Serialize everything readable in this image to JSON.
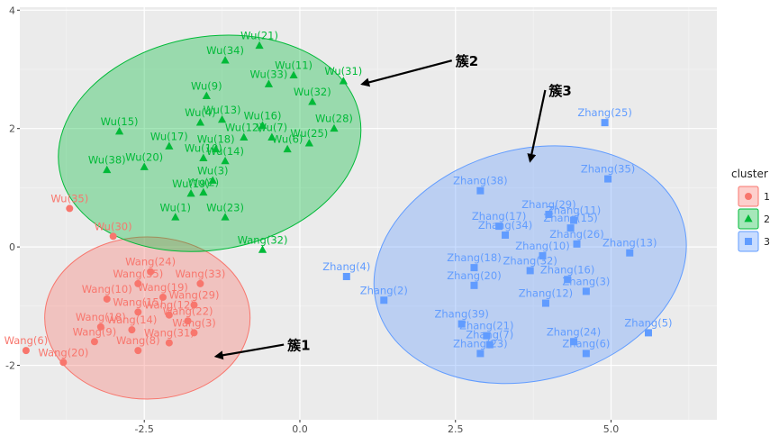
{
  "chart_data": {
    "type": "scatter",
    "title": "",
    "xlabel": "",
    "ylabel": "",
    "xlim": [
      -4.5,
      6.7
    ],
    "ylim": [
      -2.92,
      4.05
    ],
    "x_ticks": [
      -2.5,
      0.0,
      2.5,
      5.0
    ],
    "x_tick_labels": [
      "-2.5",
      "0.0",
      "2.5",
      "5.0"
    ],
    "y_ticks": [
      -2,
      0,
      2,
      4
    ],
    "y_tick_labels": [
      "-2",
      "0",
      "2",
      "4"
    ],
    "grid": true,
    "legend": {
      "title": "cluster",
      "position": "right",
      "entries": [
        {
          "label": "1",
          "color": "#F8766D",
          "shape": "circle"
        },
        {
          "label": "2",
          "color": "#00BA38",
          "shape": "triangle"
        },
        {
          "label": "3",
          "color": "#619CFF",
          "shape": "square"
        }
      ]
    },
    "series": [
      {
        "cluster": "1",
        "color": "#F8766D",
        "shape": "circle",
        "ellipse": {
          "cx": -2.45,
          "cy": -1.2,
          "rx": 1.65,
          "ry": 1.37,
          "angle": 0
        },
        "points": [
          {
            "label": "Wu(35)",
            "x": -3.7,
            "y": 0.65
          },
          {
            "label": "Wu(30)",
            "x": -3.0,
            "y": 0.18
          },
          {
            "label": "Wang(24)",
            "x": -2.4,
            "y": -0.42
          },
          {
            "label": "Wang(35)",
            "x": -2.6,
            "y": -0.62
          },
          {
            "label": "Wang(33)",
            "x": -1.6,
            "y": -0.62
          },
          {
            "label": "Wang(10)",
            "x": -3.1,
            "y": -0.88
          },
          {
            "label": "Wang(19)",
            "x": -2.2,
            "y": -0.85
          },
          {
            "label": "Wang(29)",
            "x": -1.7,
            "y": -0.98
          },
          {
            "label": "Wang(12)",
            "x": -2.1,
            "y": -1.15
          },
          {
            "label": "Wang(15)",
            "x": -2.6,
            "y": -1.1
          },
          {
            "label": "Wang(22)",
            "x": -1.8,
            "y": -1.25
          },
          {
            "label": "Wang(18)",
            "x": -3.2,
            "y": -1.35
          },
          {
            "label": "Wang(14)",
            "x": -2.7,
            "y": -1.4
          },
          {
            "label": "Wang(3)",
            "x": -1.7,
            "y": -1.45
          },
          {
            "label": "Wang(9)",
            "x": -3.3,
            "y": -1.6
          },
          {
            "label": "Wang(31)",
            "x": -2.1,
            "y": -1.62
          },
          {
            "label": "Wang(8)",
            "x": -2.6,
            "y": -1.75
          },
          {
            "label": "Wang(6)",
            "x": -4.4,
            "y": -1.75
          },
          {
            "label": "Wang(20)",
            "x": -3.8,
            "y": -1.95
          }
        ]
      },
      {
        "cluster": "2",
        "color": "#00BA38",
        "shape": "triangle",
        "ellipse": {
          "cx": -1.45,
          "cy": 1.75,
          "rx": 2.45,
          "ry": 1.8,
          "angle": -10
        },
        "points": [
          {
            "label": "Wu(21)",
            "x": -0.65,
            "y": 3.4
          },
          {
            "label": "Wu(34)",
            "x": -1.2,
            "y": 3.15
          },
          {
            "label": "Wu(11)",
            "x": -0.1,
            "y": 2.9
          },
          {
            "label": "Wu(33)",
            "x": -0.5,
            "y": 2.75
          },
          {
            "label": "Wu(31)",
            "x": 0.7,
            "y": 2.8
          },
          {
            "label": "Wu(9)",
            "x": -1.5,
            "y": 2.55
          },
          {
            "label": "Wu(32)",
            "x": 0.2,
            "y": 2.45
          },
          {
            "label": "Wu(13)",
            "x": -1.25,
            "y": 2.15
          },
          {
            "label": "Wu(4)",
            "x": -1.6,
            "y": 2.1
          },
          {
            "label": "Wu(16)",
            "x": -0.6,
            "y": 2.05
          },
          {
            "label": "Wu(15)",
            "x": -2.9,
            "y": 1.95
          },
          {
            "label": "Wu(28)",
            "x": 0.55,
            "y": 2.0
          },
          {
            "label": "Wu(12)",
            "x": -0.9,
            "y": 1.85
          },
          {
            "label": "Wu(7)",
            "x": -0.45,
            "y": 1.85
          },
          {
            "label": "Wu(25)",
            "x": 0.15,
            "y": 1.75
          },
          {
            "label": "Wu(17)",
            "x": -2.1,
            "y": 1.7
          },
          {
            "label": "Wu(18)",
            "x": -1.35,
            "y": 1.65
          },
          {
            "label": "Wu(6)",
            "x": -0.2,
            "y": 1.65
          },
          {
            "label": "Wu(10)",
            "x": -1.55,
            "y": 1.5
          },
          {
            "label": "Wu(14)",
            "x": -1.2,
            "y": 1.45
          },
          {
            "label": "Wu(38)",
            "x": -3.1,
            "y": 1.3
          },
          {
            "label": "Wu(20)",
            "x": -2.5,
            "y": 1.35
          },
          {
            "label": "Wu(3)",
            "x": -1.4,
            "y": 1.12
          },
          {
            "label": "Wu(19)",
            "x": -1.75,
            "y": 0.9
          },
          {
            "label": "Wu(2)",
            "x": -1.55,
            "y": 0.92
          },
          {
            "label": "Wu(1)",
            "x": -2.0,
            "y": 0.5
          },
          {
            "label": "Wu(23)",
            "x": -1.2,
            "y": 0.5
          },
          {
            "label": "Wang(32)",
            "x": -0.6,
            "y": -0.05
          }
        ]
      },
      {
        "cluster": "3",
        "color": "#619CFF",
        "shape": "square",
        "ellipse": {
          "cx": 3.7,
          "cy": -0.3,
          "rx": 2.55,
          "ry": 1.95,
          "angle": -15
        },
        "points": [
          {
            "label": "Zhang(25)",
            "x": 4.9,
            "y": 2.1
          },
          {
            "label": "Zhang(38)",
            "x": 2.9,
            "y": 0.95
          },
          {
            "label": "Zhang(35)",
            "x": 4.95,
            "y": 1.15
          },
          {
            "label": "Zhang(29)",
            "x": 4.0,
            "y": 0.55
          },
          {
            "label": "Zhang(17)",
            "x": 3.2,
            "y": 0.35
          },
          {
            "label": "Zhang(11)",
            "x": 4.4,
            "y": 0.45
          },
          {
            "label": "Zhang(15)",
            "x": 4.35,
            "y": 0.32
          },
          {
            "label": "Zhang(34)",
            "x": 3.3,
            "y": 0.2
          },
          {
            "label": "Zhang(26)",
            "x": 4.45,
            "y": 0.05
          },
          {
            "label": "Zhang(13)",
            "x": 5.3,
            "y": -0.1
          },
          {
            "label": "Zhang(10)",
            "x": 3.9,
            "y": -0.15
          },
          {
            "label": "Zhang(18)",
            "x": 2.8,
            "y": -0.35
          },
          {
            "label": "Zhang(4)",
            "x": 0.75,
            "y": -0.5
          },
          {
            "label": "Zhang(32)",
            "x": 3.7,
            "y": -0.4
          },
          {
            "label": "Zhang(16)",
            "x": 4.3,
            "y": -0.55
          },
          {
            "label": "Zhang(20)",
            "x": 2.8,
            "y": -0.65
          },
          {
            "label": "Zhang(3)",
            "x": 4.6,
            "y": -0.75
          },
          {
            "label": "Zhang(2)",
            "x": 1.35,
            "y": -0.9
          },
          {
            "label": "Zhang(12)",
            "x": 3.95,
            "y": -0.95
          },
          {
            "label": "Zhang(39)",
            "x": 2.6,
            "y": -1.3
          },
          {
            "label": "Zhang(21)",
            "x": 3.0,
            "y": -1.5
          },
          {
            "label": "Zhang(7)",
            "x": 3.05,
            "y": -1.65
          },
          {
            "label": "Zhang(24)",
            "x": 4.4,
            "y": -1.6
          },
          {
            "label": "Zhang(5)",
            "x": 5.6,
            "y": -1.45
          },
          {
            "label": "Zhang(23)",
            "x": 2.9,
            "y": -1.8
          },
          {
            "label": "Zhang(6)",
            "x": 4.6,
            "y": -1.8
          }
        ]
      }
    ],
    "annotations": [
      {
        "text": "簇2",
        "x": 2.5,
        "y": 3.15,
        "arrow_to": [
          1.0,
          2.75
        ]
      },
      {
        "text": "簇3",
        "x": 4.0,
        "y": 2.65,
        "arrow_to": [
          3.7,
          1.45
        ]
      },
      {
        "text": "簇1",
        "x": -0.2,
        "y": -1.65,
        "arrow_to": [
          -1.35,
          -1.85
        ]
      }
    ]
  }
}
